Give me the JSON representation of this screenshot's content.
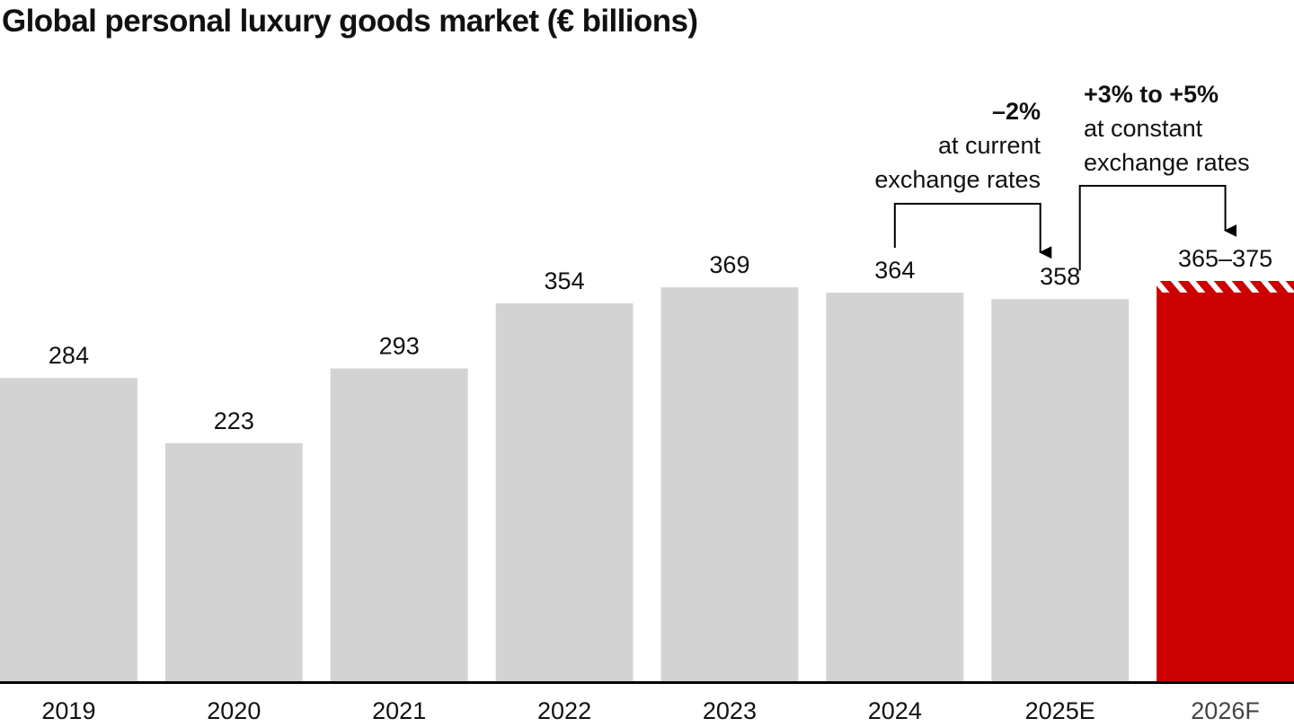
{
  "chart_data": {
    "type": "bar",
    "title": "Global personal luxury goods market (€ billions)",
    "xlabel": "",
    "ylabel": "",
    "categories": [
      "2019",
      "2020",
      "2021",
      "2022",
      "2023",
      "2024",
      "2025E",
      "2026F"
    ],
    "values": [
      284,
      223,
      293,
      354,
      369,
      364,
      358,
      [
        365,
        375
      ]
    ],
    "value_labels": [
      "284",
      "223",
      "293",
      "354",
      "369",
      "364",
      "358",
      "365–375"
    ],
    "ylim": [
      0,
      375
    ],
    "grid": false,
    "legend": "none",
    "colors": {
      "historical": "#d3d3d3",
      "forecast": "#cc0000",
      "axis": "#000000"
    },
    "forecast_range": {
      "category": "2026F",
      "low": 365,
      "high": 375,
      "style": "hatched"
    },
    "annotations": [
      {
        "from": "2024",
        "to": "2025E",
        "headline": "–2%",
        "lines": [
          "at current",
          "exchange rates"
        ]
      },
      {
        "from": "2025E",
        "to": "2026F",
        "headline": "+3% to +5%",
        "lines": [
          "at constant",
          "exchange rates"
        ]
      }
    ]
  }
}
